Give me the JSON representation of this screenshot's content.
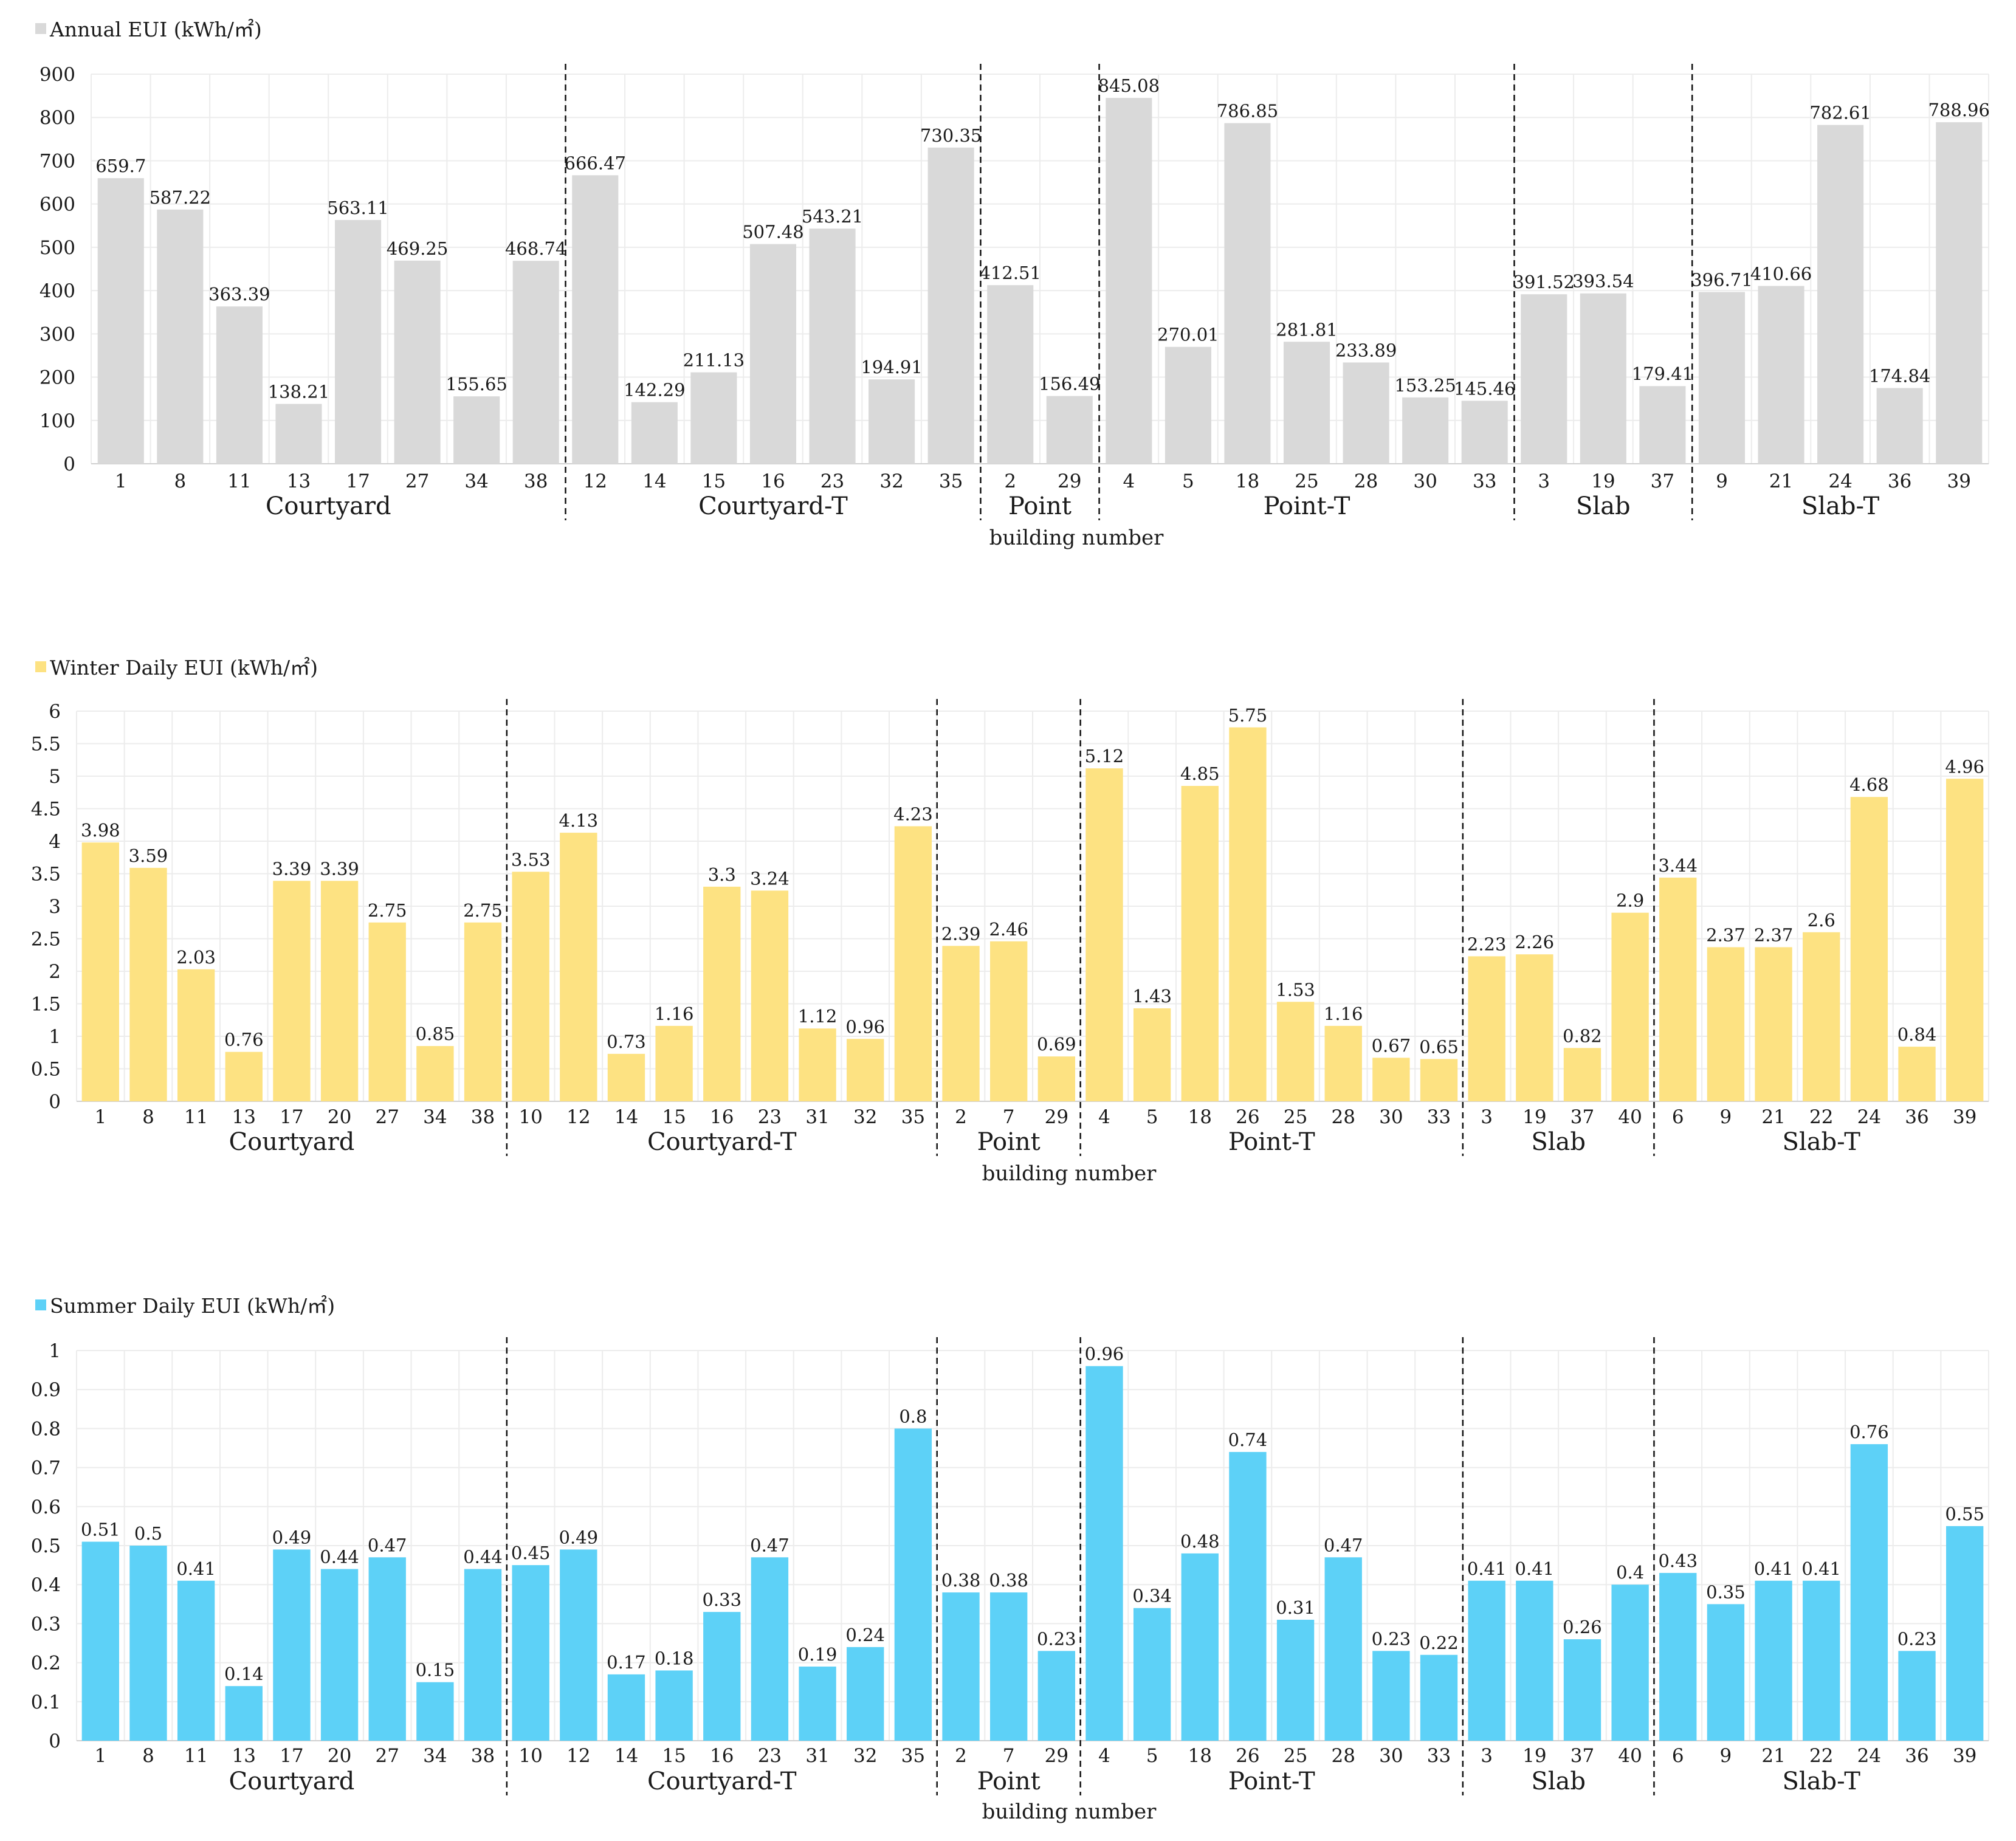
{
  "chart_data": [
    {
      "type": "bar",
      "legend": "Annual EUI (kWh/㎡)",
      "color": "#d9d9d9",
      "xlabel": "building number",
      "ylim": [
        0,
        900
      ],
      "yticks": [
        "0",
        "100",
        "200",
        "300",
        "400",
        "500",
        "600",
        "700",
        "800",
        "900"
      ],
      "groups": [
        {
          "name": "Courtyard",
          "buildings": [
            "1",
            "8",
            "11",
            "13",
            "17",
            "27",
            "34",
            "38"
          ],
          "values": [
            659.7,
            587.22,
            363.39,
            138.21,
            563.11,
            469.25,
            155.65,
            468.74
          ]
        },
        {
          "name": "Courtyard-T",
          "buildings": [
            "12",
            "14",
            "15",
            "16",
            "23",
            "32",
            "35"
          ],
          "values": [
            666.47,
            142.29,
            211.13,
            507.48,
            543.21,
            194.91,
            730.35
          ]
        },
        {
          "name": "Point",
          "buildings": [
            "2",
            "29"
          ],
          "values": [
            412.51,
            156.49
          ]
        },
        {
          "name": "Point-T",
          "buildings": [
            "4",
            "5",
            "18",
            "25",
            "28",
            "30",
            "33"
          ],
          "values": [
            845.08,
            270.01,
            786.85,
            281.81,
            233.89,
            153.25,
            145.46
          ]
        },
        {
          "name": "Slab",
          "buildings": [
            "3",
            "19",
            "37"
          ],
          "values": [
            391.52,
            393.54,
            179.41
          ]
        },
        {
          "name": "Slab-T",
          "buildings": [
            "9",
            "21",
            "24",
            "36",
            "39"
          ],
          "values": [
            396.71,
            410.66,
            782.61,
            174.84,
            788.96
          ]
        }
      ]
    },
    {
      "type": "bar",
      "legend": "Winter Daily EUI (kWh/㎡)",
      "color": "#fde282",
      "xlabel": "building number",
      "ylim": [
        0,
        6
      ],
      "yticks": [
        "0",
        "0.5",
        "1",
        "1.5",
        "2",
        "2.5",
        "3",
        "3.5",
        "4",
        "4.5",
        "5",
        "5.5",
        "6"
      ],
      "groups": [
        {
          "name": "Courtyard",
          "buildings": [
            "1",
            "8",
            "11",
            "13",
            "17",
            "20",
            "27",
            "34",
            "38"
          ],
          "values": [
            3.98,
            3.59,
            2.03,
            0.76,
            3.39,
            3.39,
            2.75,
            0.85,
            2.75
          ]
        },
        {
          "name": "Courtyard-T",
          "buildings": [
            "10",
            "12",
            "14",
            "15",
            "16",
            "23",
            "31",
            "32",
            "35"
          ],
          "values": [
            3.53,
            4.13,
            0.73,
            1.16,
            3.3,
            3.24,
            1.12,
            0.96,
            4.23
          ]
        },
        {
          "name": "Point",
          "buildings": [
            "2",
            "7",
            "29"
          ],
          "values": [
            2.39,
            2.46,
            0.69
          ]
        },
        {
          "name": "Point-T",
          "buildings": [
            "4",
            "5",
            "18",
            "26",
            "25",
            "28",
            "30",
            "33"
          ],
          "values": [
            5.12,
            1.43,
            4.85,
            5.75,
            1.53,
            1.16,
            0.67,
            0.65
          ]
        },
        {
          "name": "Slab",
          "buildings": [
            "3",
            "19",
            "37",
            "40"
          ],
          "values": [
            2.23,
            2.26,
            0.82,
            2.9
          ]
        },
        {
          "name": "Slab-T",
          "buildings": [
            "6",
            "9",
            "21",
            "22",
            "24",
            "36",
            "39"
          ],
          "values": [
            3.44,
            2.37,
            2.37,
            2.6,
            4.68,
            0.84,
            4.96
          ]
        }
      ]
    },
    {
      "type": "bar",
      "legend": "Summer Daily EUI (kWh/㎡)",
      "color": "#5dd1f7",
      "xlabel": "building number",
      "ylim": [
        0,
        1
      ],
      "yticks": [
        "0",
        "0.1",
        "0.2",
        "0.3",
        "0.4",
        "0.5",
        "0.6",
        "0.7",
        "0.8",
        "0.9",
        "1"
      ],
      "groups": [
        {
          "name": "Courtyard",
          "buildings": [
            "1",
            "8",
            "11",
            "13",
            "17",
            "20",
            "27",
            "34",
            "38"
          ],
          "values": [
            0.51,
            0.5,
            0.41,
            0.14,
            0.49,
            0.44,
            0.47,
            0.15,
            0.44
          ]
        },
        {
          "name": "Courtyard-T",
          "buildings": [
            "10",
            "12",
            "14",
            "15",
            "16",
            "23",
            "31",
            "32",
            "35"
          ],
          "values": [
            0.45,
            0.49,
            0.17,
            0.18,
            0.33,
            0.47,
            0.19,
            0.24,
            0.8
          ]
        },
        {
          "name": "Point",
          "buildings": [
            "2",
            "7",
            "29"
          ],
          "values": [
            0.38,
            0.38,
            0.23
          ]
        },
        {
          "name": "Point-T",
          "buildings": [
            "4",
            "5",
            "18",
            "26",
            "25",
            "28",
            "30",
            "33"
          ],
          "values": [
            0.96,
            0.34,
            0.48,
            0.74,
            0.31,
            0.47,
            0.23,
            0.22
          ]
        },
        {
          "name": "Slab",
          "buildings": [
            "3",
            "19",
            "37",
            "40"
          ],
          "values": [
            0.41,
            0.41,
            0.26,
            0.4
          ]
        },
        {
          "name": "Slab-T",
          "buildings": [
            "6",
            "9",
            "21",
            "22",
            "24",
            "36",
            "39"
          ],
          "values": [
            0.43,
            0.35,
            0.41,
            0.41,
            0.76,
            0.23,
            0.55
          ]
        }
      ]
    }
  ]
}
